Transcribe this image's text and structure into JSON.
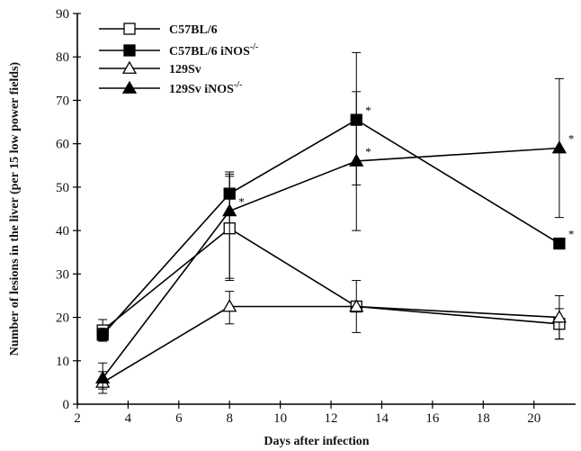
{
  "chart_data": {
    "type": "line",
    "xlabel": "Days after infection",
    "ylabel": "Number of lesions in the liver (per 15 low power fields)",
    "xlim": [
      2,
      21.5
    ],
    "ylim": [
      0,
      90
    ],
    "x_ticks": [
      2,
      4,
      6,
      8,
      10,
      12,
      14,
      16,
      18,
      20
    ],
    "y_ticks": [
      0,
      10,
      20,
      30,
      40,
      50,
      60,
      70,
      80,
      90
    ],
    "grid": false,
    "legend_position": "top-left",
    "series": [
      {
        "name": "C57BL/6",
        "marker": "open-square",
        "x": [
          3,
          8,
          13,
          21
        ],
        "y": [
          17,
          40.5,
          22.5,
          18.5
        ],
        "err_low": [
          15.5,
          28.5,
          16.5,
          15
        ],
        "err_high": [
          19.5,
          52.5,
          28.5,
          22
        ]
      },
      {
        "name": "C57BL/6 iNOS",
        "name_sup": "-/-",
        "marker": "filled-square",
        "x": [
          3,
          8,
          13,
          21
        ],
        "y": [
          16,
          48.5,
          65.5,
          37
        ],
        "err_low": [
          14.5,
          44,
          50.5,
          37
        ],
        "err_high": [
          17.5,
          53.5,
          81,
          37
        ],
        "significant": [
          false,
          false,
          true,
          true
        ]
      },
      {
        "name": "129Sv",
        "marker": "open-triangle",
        "x": [
          3,
          8,
          13,
          21
        ],
        "y": [
          5,
          22.5,
          22.5,
          20
        ],
        "err_low": [
          2.5,
          18.5,
          22.5,
          15
        ],
        "err_high": [
          7.5,
          26,
          22.5,
          25
        ]
      },
      {
        "name": "129Sv iNOS",
        "name_sup": "-/-",
        "marker": "filled-triangle",
        "x": [
          3,
          8,
          13,
          21
        ],
        "y": [
          6,
          44.5,
          56,
          59
        ],
        "err_low": [
          3.5,
          29,
          40,
          43
        ],
        "err_high": [
          9.5,
          53,
          72,
          75
        ],
        "significant": [
          false,
          true,
          true,
          true
        ]
      }
    ],
    "annotation_symbol": "*"
  }
}
